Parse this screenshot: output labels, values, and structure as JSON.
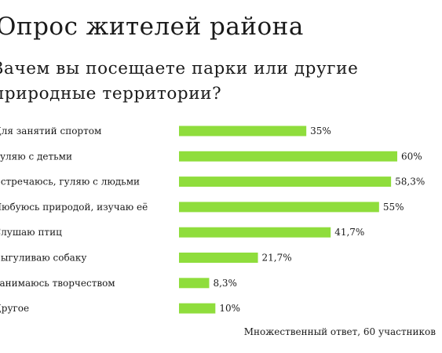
{
  "title": "Опрос жителей района",
  "subtitle": "Зачем вы посещаете парки или другие природные территории?",
  "footnote": "Множественный ответ, 60 участников",
  "colors": {
    "bar": "#8fdd3c",
    "text": "#1a1a1a"
  },
  "chart_data": {
    "type": "bar",
    "orientation": "horizontal",
    "title": "Опрос жителей района",
    "subtitle": "Зачем вы посещаете парки или другие природные территории?",
    "categories": [
      "Для занятий спортом",
      "Гуляю с детьми",
      "Встречаюсь, гуляю с людьми",
      "Любуюсь природой, изучаю её",
      "Слушаю птиц",
      "Выгуливаю собаку",
      "Занимаюсь творчеством",
      "Другое"
    ],
    "values": [
      35,
      60,
      58.3,
      55,
      41.7,
      21.7,
      8.3,
      10
    ],
    "value_labels": [
      "35%",
      "60%",
      "58,3%",
      "55%",
      "41,7%",
      "21,7%",
      "8,3%",
      "10%"
    ],
    "xlim": [
      0,
      60
    ],
    "unit": "%",
    "grid": false,
    "legend": "none"
  }
}
